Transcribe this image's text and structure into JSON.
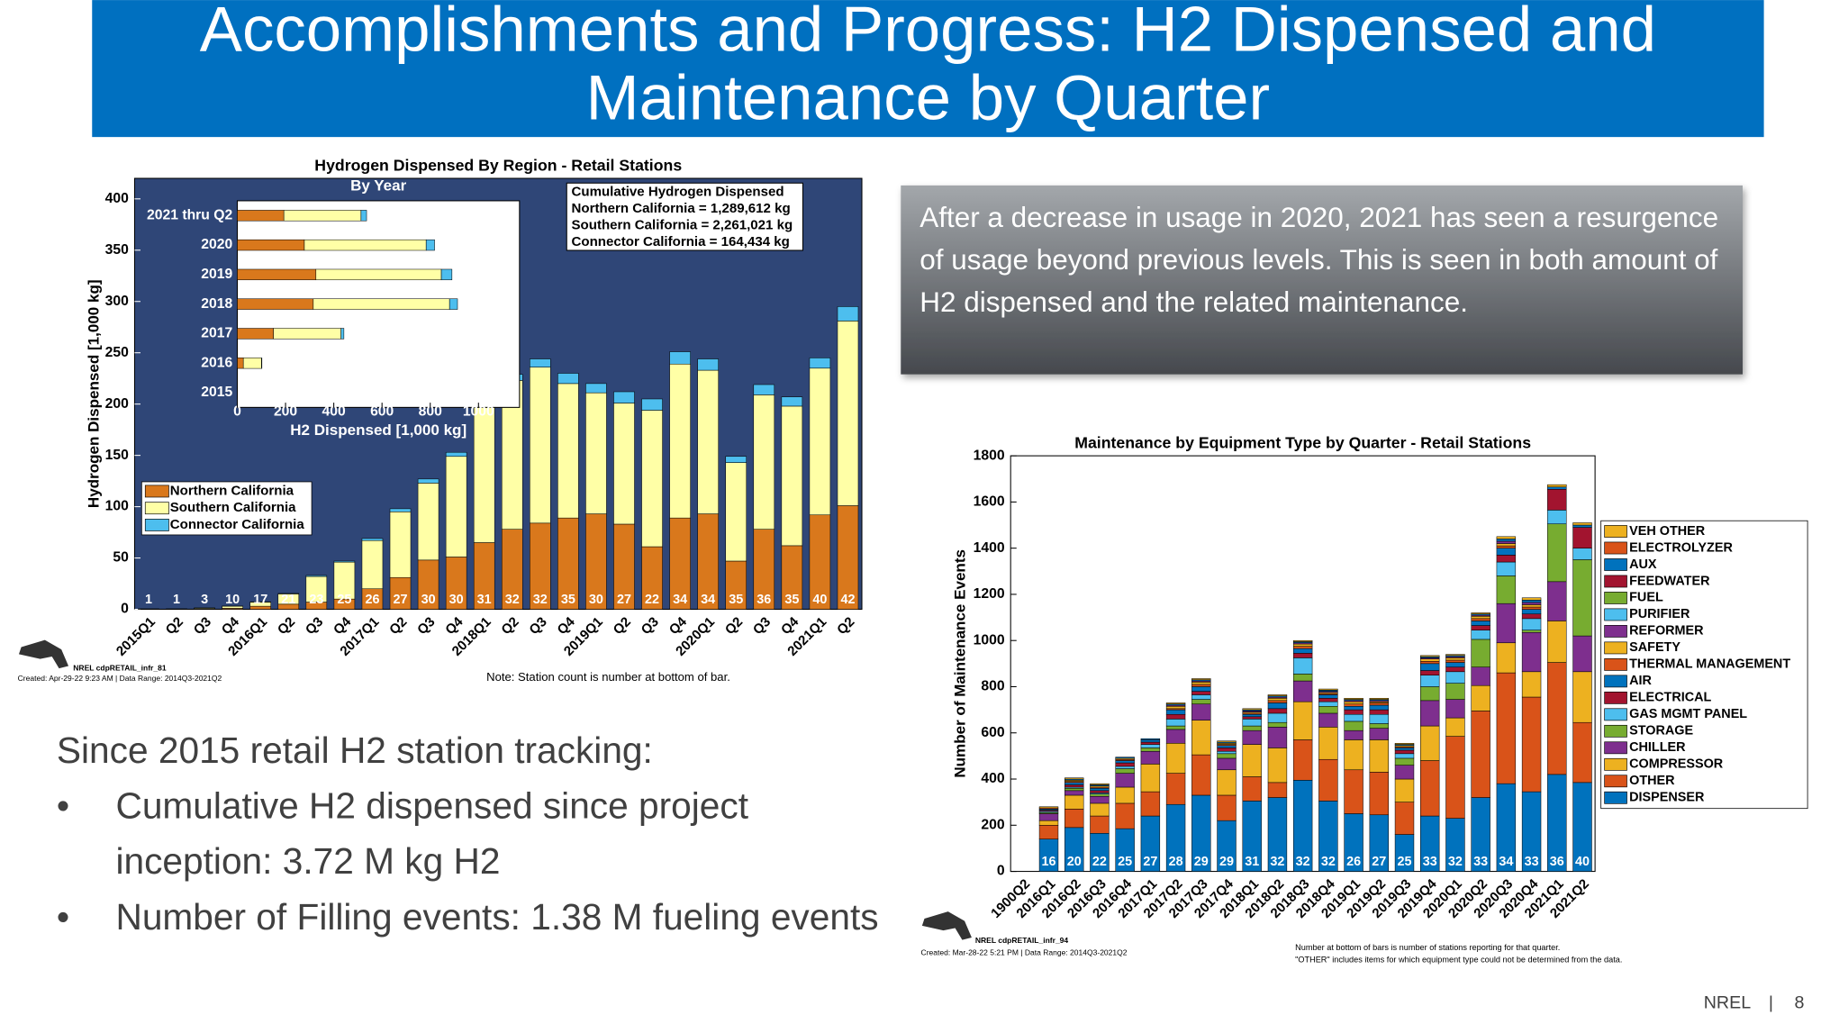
{
  "title": "Accomplishments and Progress: H2 Dispensed and Maintenance by Quarter",
  "callout": "After a decrease in usage in 2020, 2021 has seen a resurgence of usage beyond previous levels. This is seen in both amount of H2 dispensed and the related maintenance.",
  "bullets": {
    "heading": "Since 2015 retail H2 station tracking:",
    "items": [
      "Cumulative H2 dispensed since project inception: 3.72 M kg H2",
      "Number of Filling events: 1.38 M fueling events"
    ]
  },
  "footer": {
    "org": "NREL",
    "separator": "|",
    "page": "8"
  },
  "chart_data": [
    {
      "type": "bar",
      "stacked": true,
      "title": "Hydrogen Dispensed By Region - Retail Stations",
      "ylabel": "Hydrogen Dispensed [1,000 kg]",
      "background": "#2f4677",
      "categories": [
        "2015Q1",
        "Q2",
        "Q3",
        "Q4",
        "2016Q1",
        "Q2",
        "Q3",
        "Q4",
        "2017Q1",
        "Q2",
        "Q3",
        "Q4",
        "2018Q1",
        "Q2",
        "Q3",
        "Q4",
        "2019Q1",
        "Q2",
        "Q3",
        "Q4",
        "2020Q1",
        "Q2",
        "Q3",
        "Q4",
        "2021Q1",
        "Q2"
      ],
      "series": [
        {
          "name": "Northern California",
          "color": "#d9781c",
          "values": [
            0.2,
            0.2,
            0.5,
            1,
            3,
            5,
            7,
            10,
            20,
            31,
            48,
            51,
            65,
            78,
            84,
            89,
            93,
            83,
            61,
            89,
            93,
            47,
            78,
            62,
            92,
            101
          ]
        },
        {
          "name": "Southern California",
          "color": "#ffffa6",
          "values": [
            0.3,
            0.3,
            0.8,
            2,
            4,
            10,
            25,
            36,
            47,
            64,
            75,
            98,
            150,
            145,
            152,
            131,
            118,
            118,
            133,
            150,
            140,
            96,
            131,
            136,
            143,
            180
          ]
        },
        {
          "name": "Connector California",
          "color": "#4dbeee",
          "values": [
            0,
            0,
            0.1,
            0.2,
            0.3,
            0.5,
            1,
            1,
            2,
            3,
            4,
            4,
            5,
            6,
            8,
            10,
            9,
            11,
            11,
            12,
            11,
            6,
            10,
            9,
            10,
            14
          ]
        }
      ],
      "station_counts": [
        1,
        1,
        3,
        10,
        17,
        21,
        23,
        25,
        26,
        27,
        30,
        30,
        31,
        32,
        32,
        35,
        30,
        27,
        22,
        34,
        34,
        35,
        36,
        35,
        40,
        42
      ],
      "ylim": [
        0,
        420
      ],
      "yticks": [
        0,
        50,
        100,
        150,
        200,
        250,
        300,
        350,
        400
      ],
      "legend_position": "lower left",
      "cumulative_box": [
        "Cumulative Hydrogen Dispensed",
        "Northern California = 1,289,612 kg",
        "Southern California = 2,261,021 kg",
        "Connector California = 164,434 kg"
      ],
      "credit": "NREL cdpRETAIL_infr_81",
      "created": "Created: Apr-29-22  9:23 AM | Data Range: 2014Q3-2021Q2",
      "note": "Note: Station count is number at bottom of bar."
    },
    {
      "type": "bar",
      "stacked": true,
      "orientation": "horizontal",
      "title": "By Year",
      "xlabel": "H2 Dispensed [1,000 kg]",
      "categories": [
        "2021 thru Q2",
        "2020",
        "2019",
        "2018",
        "2017",
        "2016",
        "2015"
      ],
      "series": [
        {
          "color": "#d9781c",
          "values": [
            193,
            278,
            326,
            315,
            150,
            25,
            0.5
          ]
        },
        {
          "color": "#ffffa6",
          "values": [
            320,
            505,
            520,
            565,
            280,
            75,
            0.5
          ]
        },
        {
          "color": "#4dbeee",
          "values": [
            23,
            35,
            44,
            33,
            12,
            2,
            0
          ]
        }
      ],
      "xlim": [
        0,
        1170
      ],
      "xticks": [
        0,
        200,
        400,
        600,
        800,
        1000
      ]
    },
    {
      "type": "bar",
      "stacked": true,
      "title": "Maintenance by Equipment Type by Quarter - Retail Stations",
      "ylabel": "Number of Maintenance Events",
      "categories": [
        "1900Q2",
        "2016Q1",
        "2016Q2",
        "2016Q3",
        "2016Q4",
        "2017Q1",
        "2017Q2",
        "2017Q3",
        "2017Q4",
        "2018Q1",
        "2018Q2",
        "2018Q3",
        "2018Q4",
        "2019Q1",
        "2019Q2",
        "2019Q3",
        "2019Q4",
        "2020Q1",
        "2020Q2",
        "2020Q3",
        "2020Q4",
        "2021Q1",
        "2021Q2"
      ],
      "series": [
        {
          "name": "DISPENSER",
          "color": "#0072bd",
          "values": [
            0,
            140,
            190,
            165,
            185,
            240,
            290,
            330,
            220,
            305,
            320,
            395,
            305,
            250,
            245,
            160,
            240,
            230,
            320,
            380,
            345,
            420,
            385
          ]
        },
        {
          "name": "OTHER",
          "color": "#d95319",
          "values": [
            0,
            60,
            80,
            75,
            110,
            105,
            135,
            175,
            110,
            105,
            65,
            175,
            180,
            190,
            185,
            140,
            240,
            355,
            375,
            480,
            410,
            485,
            260
          ]
        },
        {
          "name": "COMPRESSOR",
          "color": "#edb120",
          "values": [
            0,
            20,
            60,
            55,
            70,
            120,
            130,
            150,
            110,
            140,
            150,
            165,
            140,
            130,
            140,
            100,
            150,
            80,
            110,
            130,
            110,
            180,
            220
          ]
        },
        {
          "name": "CHILLER",
          "color": "#7e2f8e",
          "values": [
            0,
            30,
            20,
            30,
            60,
            55,
            60,
            70,
            50,
            60,
            90,
            90,
            60,
            40,
            50,
            60,
            110,
            80,
            80,
            170,
            170,
            170,
            155
          ]
        },
        {
          "name": "STORAGE",
          "color": "#77ac30",
          "values": [
            0,
            5,
            10,
            10,
            20,
            15,
            15,
            20,
            20,
            20,
            20,
            30,
            30,
            40,
            20,
            30,
            60,
            70,
            120,
            120,
            10,
            250,
            330
          ]
        },
        {
          "name": "GAS MGMT PANEL",
          "color": "#4dbeee",
          "values": [
            0,
            5,
            5,
            5,
            10,
            15,
            30,
            20,
            10,
            30,
            40,
            70,
            20,
            30,
            40,
            20,
            50,
            50,
            40,
            60,
            50,
            60,
            50
          ]
        },
        {
          "name": "ELECTRICAL",
          "color": "#a2142f",
          "values": [
            0,
            5,
            10,
            10,
            15,
            10,
            20,
            15,
            15,
            10,
            20,
            20,
            15,
            20,
            20,
            15,
            20,
            20,
            20,
            30,
            20,
            90,
            90
          ]
        },
        {
          "name": "AIR",
          "color": "#0072bd",
          "values": [
            0,
            5,
            10,
            10,
            10,
            10,
            20,
            20,
            10,
            10,
            25,
            20,
            15,
            15,
            20,
            10,
            30,
            20,
            20,
            30,
            20,
            0,
            0
          ]
        },
        {
          "name": "THERMAL MANAGEMENT",
          "color": "#d95319",
          "values": [
            0,
            5,
            5,
            5,
            5,
            0,
            5,
            10,
            5,
            5,
            10,
            10,
            5,
            10,
            10,
            5,
            10,
            10,
            10,
            10,
            10,
            0,
            0
          ]
        },
        {
          "name": "SAFETY",
          "color": "#edb120",
          "values": [
            0,
            5,
            5,
            5,
            5,
            0,
            10,
            10,
            5,
            5,
            10,
            10,
            5,
            10,
            5,
            5,
            10,
            10,
            10,
            10,
            10,
            0,
            0
          ]
        },
        {
          "name": "REFORMER",
          "color": "#7e2f8e",
          "values": [
            0,
            0,
            0,
            0,
            0,
            0,
            5,
            5,
            0,
            5,
            5,
            5,
            5,
            5,
            5,
            0,
            5,
            5,
            5,
            10,
            10,
            0,
            0
          ]
        },
        {
          "name": "PURIFIER",
          "color": "#4dbeee",
          "values": [
            0,
            0,
            0,
            0,
            0,
            0,
            0,
            0,
            0,
            0,
            0,
            0,
            0,
            0,
            0,
            0,
            0,
            0,
            0,
            0,
            0,
            0,
            0
          ]
        },
        {
          "name": "FUEL",
          "color": "#77ac30",
          "values": [
            0,
            0,
            0,
            0,
            0,
            0,
            0,
            0,
            0,
            0,
            0,
            0,
            0,
            0,
            0,
            0,
            0,
            0,
            0,
            0,
            0,
            0,
            0
          ]
        },
        {
          "name": "FEEDWATER",
          "color": "#a2142f",
          "values": [
            0,
            0,
            0,
            0,
            0,
            0,
            0,
            0,
            0,
            0,
            0,
            0,
            0,
            0,
            0,
            0,
            0,
            0,
            0,
            0,
            0,
            0,
            0
          ]
        },
        {
          "name": "AUX",
          "color": "#0072bd",
          "values": [
            0,
            0,
            5,
            5,
            5,
            5,
            5,
            5,
            5,
            5,
            5,
            5,
            5,
            5,
            5,
            5,
            5,
            5,
            5,
            10,
            10,
            10,
            10
          ]
        },
        {
          "name": "ELECTROLYZER",
          "color": "#d95319",
          "values": [
            0,
            0,
            0,
            0,
            0,
            0,
            0,
            0,
            0,
            0,
            0,
            0,
            0,
            0,
            0,
            0,
            0,
            0,
            0,
            0,
            0,
            0,
            0
          ]
        },
        {
          "name": "VEH OTHER",
          "color": "#edb120",
          "values": [
            0,
            0,
            5,
            5,
            0,
            0,
            5,
            5,
            5,
            5,
            5,
            5,
            5,
            5,
            5,
            5,
            5,
            5,
            5,
            10,
            10,
            10,
            10
          ]
        }
      ],
      "station_counts": [
        null,
        16,
        20,
        22,
        25,
        27,
        28,
        29,
        29,
        31,
        32,
        32,
        32,
        26,
        27,
        25,
        33,
        32,
        33,
        34,
        33,
        36,
        40
      ],
      "ylim": [
        0,
        1800
      ],
      "yticks": [
        0,
        200,
        400,
        600,
        800,
        1000,
        1200,
        1400,
        1600,
        1800
      ],
      "legend_position": "outside right",
      "credit": "NREL cdpRETAIL_infr_94",
      "created": "Created: Mar-28-22  5:21 PM | Data Range: 2014Q3-2021Q2",
      "notes": [
        "Number at bottom of bars is number of stations reporting for that quarter.",
        "\"OTHER\" includes items for which equipment type could not be determined from the data."
      ]
    }
  ]
}
